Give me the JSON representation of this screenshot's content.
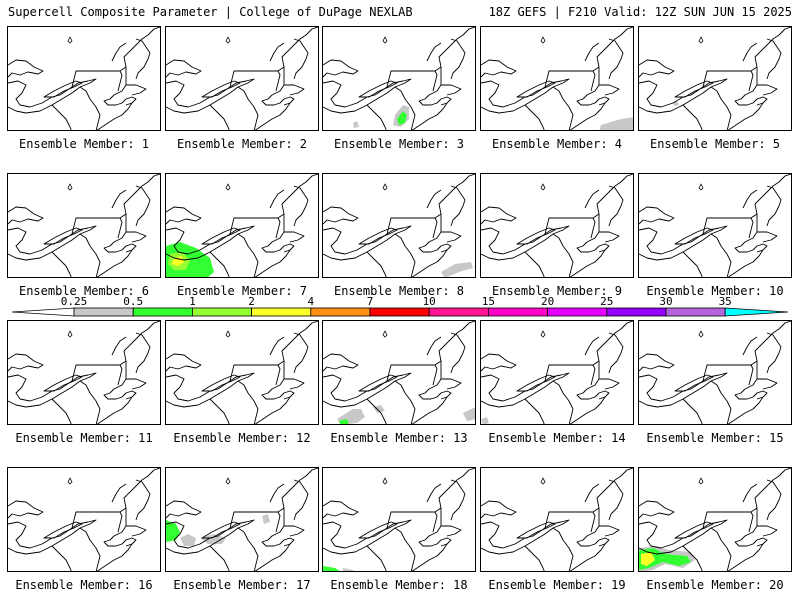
{
  "header": {
    "title": "Supercell Composite Parameter | College of DuPage NEXLAB",
    "run_info": "18Z GEFS | F210 Valid: 12Z SUN JUN 15 2025"
  },
  "colorbar": {
    "thresholds": [
      "0.25",
      "0.5",
      "1",
      "2",
      "4",
      "7",
      "10",
      "15",
      "20",
      "25",
      "30",
      "35"
    ],
    "colors": [
      "#c8c8c8",
      "#32ff32",
      "#96ff32",
      "#ffff28",
      "#ff8c14",
      "#ff0000",
      "#ff1493",
      "#ff00c8",
      "#e600ff",
      "#9600ff",
      "#b464dc",
      "#00ffff"
    ]
  },
  "members": [
    {
      "label": "Ensemble Member: 1",
      "features": []
    },
    {
      "label": "Ensemble Member: 2",
      "features": []
    },
    {
      "label": "Ensemble Member: 3",
      "features": [
        "m3"
      ]
    },
    {
      "label": "Ensemble Member: 4",
      "features": [
        "m4"
      ]
    },
    {
      "label": "Ensemble Member: 5",
      "features": [
        "m5"
      ]
    },
    {
      "label": "Ensemble Member: 6",
      "features": []
    },
    {
      "label": "Ensemble Member: 7",
      "features": [
        "m7"
      ]
    },
    {
      "label": "Ensemble Member: 8",
      "features": [
        "m8"
      ]
    },
    {
      "label": "Ensemble Member: 9",
      "features": []
    },
    {
      "label": "Ensemble Member: 10",
      "features": []
    },
    {
      "label": "Ensemble Member: 11",
      "features": []
    },
    {
      "label": "Ensemble Member: 12",
      "features": []
    },
    {
      "label": "Ensemble Member: 13",
      "features": [
        "m13"
      ]
    },
    {
      "label": "Ensemble Member: 14",
      "features": [
        "m14"
      ]
    },
    {
      "label": "Ensemble Member: 15",
      "features": []
    },
    {
      "label": "Ensemble Member: 16",
      "features": []
    },
    {
      "label": "Ensemble Member: 17",
      "features": [
        "m17"
      ]
    },
    {
      "label": "Ensemble Member: 18",
      "features": [
        "m18"
      ]
    },
    {
      "label": "Ensemble Member: 19",
      "features": []
    },
    {
      "label": "Ensemble Member: 20",
      "features": [
        "m20"
      ]
    }
  ]
}
